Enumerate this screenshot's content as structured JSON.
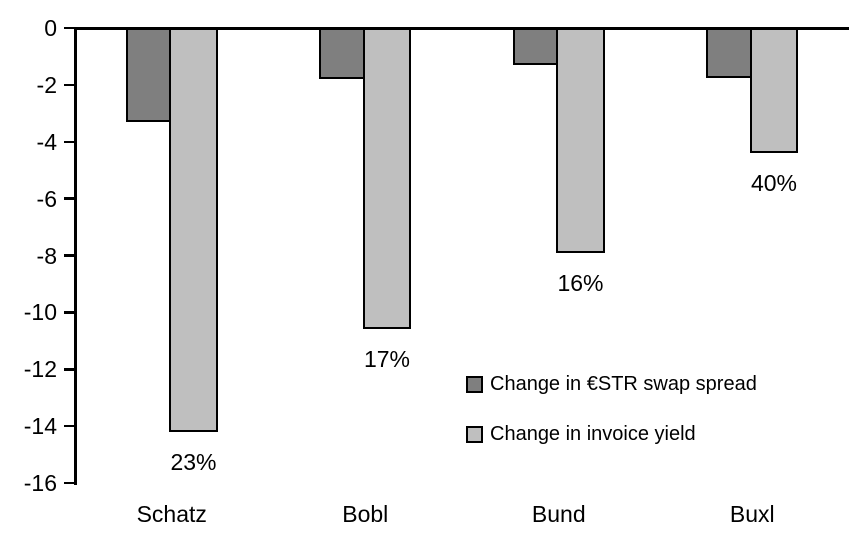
{
  "chart_data": {
    "type": "bar",
    "title": "",
    "xlabel": "",
    "ylabel": "",
    "categories": [
      "Schatz",
      "Bobl",
      "Bund",
      "Buxl"
    ],
    "series": [
      {
        "name": "Change in €STR swap spread",
        "color": "#7f7f7f",
        "values": [
          -3.3,
          -1.8,
          -1.3,
          -1.75
        ]
      },
      {
        "name": "Change in invoice yield",
        "color": "#bfbfbf",
        "values": [
          -14.2,
          -10.6,
          -7.9,
          -4.4
        ],
        "point_labels": [
          "23%",
          "17%",
          "16%",
          "40%"
        ]
      }
    ],
    "ylim": [
      -16,
      0
    ],
    "yticks": [
      "0",
      "-2",
      "-4",
      "-6",
      "-8",
      "-10",
      "-12",
      "-14",
      "-16"
    ],
    "grid": false,
    "legend_position": "inside-right",
    "bar_outline_color": "#000000",
    "axis_color": "#000000",
    "background_color": "#ffffff"
  }
}
